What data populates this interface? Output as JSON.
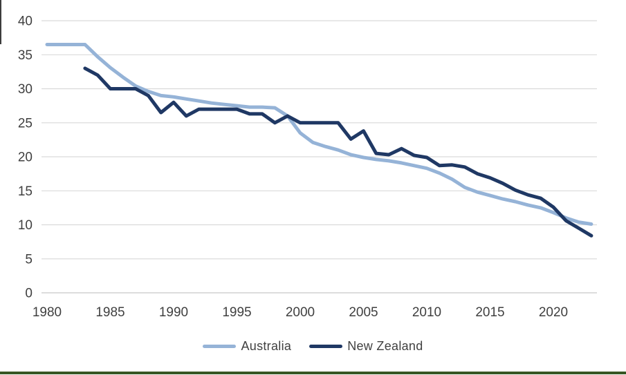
{
  "figure": {
    "background": "#ffffff",
    "bottom_bar_color": "#375623",
    "left_edge_color": "#3d3d3d",
    "gridline_color": "#d9d9d9",
    "axis_line_color": "#c6c6c6",
    "tick_text_color": "#3f3f3f"
  },
  "legend": {
    "items": [
      {
        "label": "Australia",
        "color": "#95B3D7"
      },
      {
        "label": "New Zealand",
        "color": "#1F3864"
      }
    ]
  },
  "chart_data": {
    "type": "line",
    "title": "",
    "xlabel": "",
    "ylabel": "",
    "grid": "horizontal",
    "legend_position": "bottom",
    "xlim": [
      1980,
      2023
    ],
    "ylim": [
      0,
      40
    ],
    "xticks": [
      1980,
      1985,
      1990,
      1995,
      2000,
      2005,
      2010,
      2015,
      2020
    ],
    "yticks": [
      0,
      5,
      10,
      15,
      20,
      25,
      30,
      35,
      40
    ],
    "x": [
      1980,
      1981,
      1982,
      1983,
      1984,
      1985,
      1986,
      1987,
      1988,
      1989,
      1990,
      1991,
      1992,
      1993,
      1994,
      1995,
      1996,
      1997,
      1998,
      1999,
      2000,
      2001,
      2002,
      2003,
      2004,
      2005,
      2006,
      2007,
      2008,
      2009,
      2010,
      2011,
      2012,
      2013,
      2014,
      2015,
      2016,
      2017,
      2018,
      2019,
      2020,
      2021,
      2022,
      2023
    ],
    "series": [
      {
        "name": "Australia",
        "color": "#95B3D7",
        "width": 5,
        "values": [
          36.5,
          36.5,
          36.5,
          36.5,
          34.7,
          33.1,
          31.7,
          30.4,
          29.6,
          29.0,
          28.8,
          28.5,
          28.2,
          27.9,
          27.7,
          27.5,
          27.3,
          27.3,
          27.2,
          26.0,
          23.5,
          22.1,
          21.5,
          21.0,
          20.3,
          19.9,
          19.6,
          19.4,
          19.1,
          18.7,
          18.3,
          17.6,
          16.7,
          15.5,
          14.8,
          14.3,
          13.8,
          13.4,
          12.9,
          12.5,
          11.8,
          11.0,
          10.4,
          10.1
        ]
      },
      {
        "name": "New Zealand",
        "color": "#1F3864",
        "width": 5,
        "values": [
          null,
          null,
          null,
          33.0,
          32.0,
          30.0,
          30.0,
          30.0,
          29.0,
          26.5,
          28.0,
          26.0,
          27.0,
          27.0,
          27.0,
          27.0,
          26.3,
          26.3,
          25.0,
          26.0,
          25.0,
          25.0,
          25.0,
          25.0,
          22.6,
          23.8,
          20.5,
          20.3,
          21.2,
          20.2,
          19.9,
          18.7,
          18.8,
          18.5,
          17.5,
          16.9,
          16.1,
          15.1,
          14.4,
          13.9,
          12.6,
          10.6,
          9.5,
          8.4
        ]
      }
    ]
  }
}
